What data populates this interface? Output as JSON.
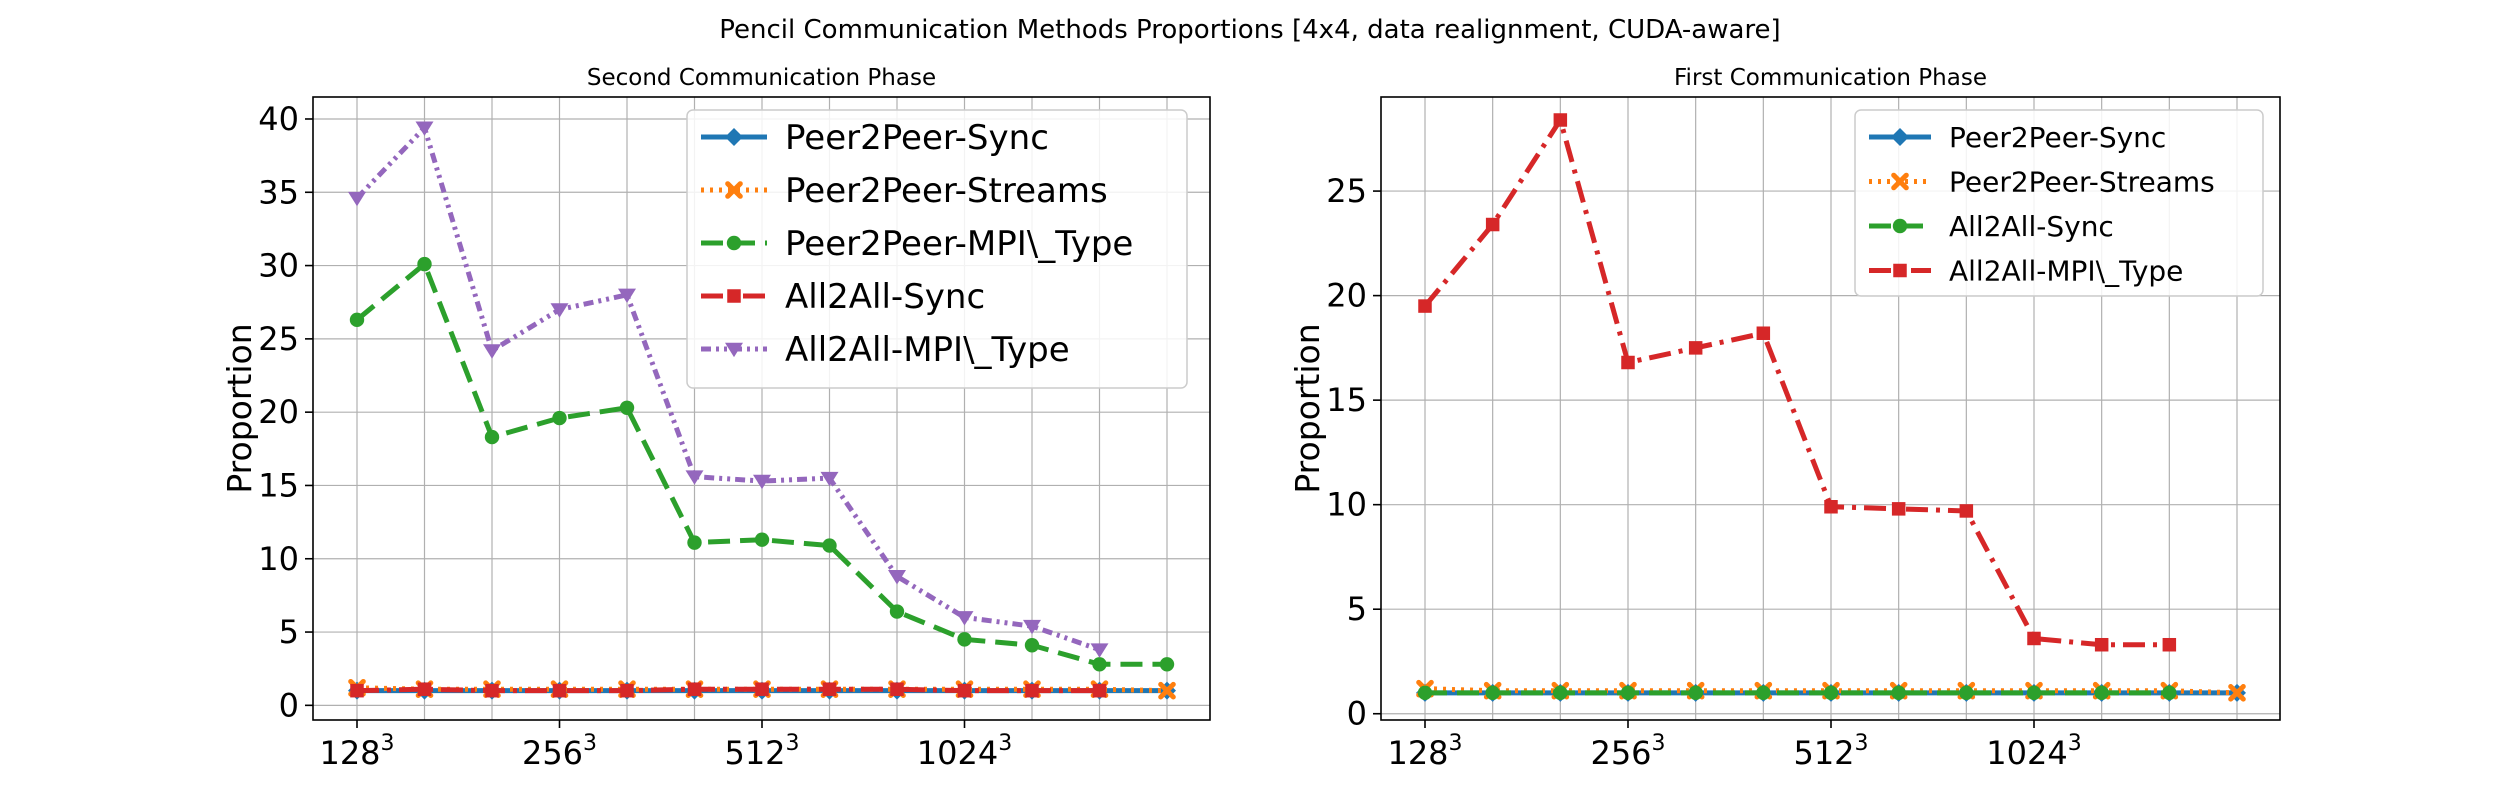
{
  "suptitle": "Pencil Communication Methods Proportions [4x4, data realignment, CUDA-aware]",
  "chart_data": [
    {
      "type": "line",
      "title": "Second Communication Phase",
      "ylabel": "Proportion",
      "x_count": 13,
      "xticks": [
        {
          "index": 0,
          "base": "128",
          "exp": "3"
        },
        {
          "index": 3,
          "base": "256",
          "exp": "3"
        },
        {
          "index": 6,
          "base": "512",
          "exp": "3"
        },
        {
          "index": 9,
          "base": "1024",
          "exp": "3"
        }
      ],
      "ylim": [
        -1,
        41.5
      ],
      "yticks": [
        0,
        5,
        10,
        15,
        20,
        25,
        30,
        35,
        40
      ],
      "grid": true,
      "legend_position": "top-right",
      "series": [
        {
          "name": "Peer2Peer-Sync",
          "color": "#1f77b4",
          "marker": "diamond",
          "dash": "",
          "values": [
            1,
            1,
            1,
            1,
            1,
            1,
            1,
            1,
            1,
            1,
            1,
            1,
            1
          ]
        },
        {
          "name": "Peer2Peer-Streams",
          "color": "#ff7f0e",
          "marker": "x",
          "dash": "3,6",
          "values": [
            1.2,
            1.1,
            1.1,
            1.1,
            1.1,
            1.1,
            1.1,
            1.1,
            1.1,
            1.1,
            1.1,
            1.1,
            1.0
          ]
        },
        {
          "name": "Peer2Peer-MPI\\_Type",
          "color": "#2ca02c",
          "marker": "circle",
          "dash": "22,10",
          "values": [
            26.3,
            30.1,
            18.3,
            19.6,
            20.3,
            11.1,
            11.3,
            10.9,
            6.4,
            4.5,
            4.1,
            2.8,
            2.8
          ]
        },
        {
          "name": "All2All-Sync",
          "color": "#d62728",
          "marker": "square",
          "dash": "22,8,4,8",
          "values": [
            1.0,
            1.1,
            1.0,
            1.0,
            1.0,
            1.1,
            1.1,
            1.1,
            1.1,
            1.0,
            1.0,
            1.0,
            null
          ]
        },
        {
          "name": "All2All-MPI\\_Type",
          "color": "#9467bd",
          "marker": "triangle-down",
          "dash": "10,5,3,5,3,5",
          "values": [
            34.6,
            39.4,
            24.2,
            27.0,
            28.0,
            15.6,
            15.3,
            15.5,
            8.8,
            6.0,
            5.4,
            3.8,
            null
          ]
        }
      ]
    },
    {
      "type": "line",
      "title": "First Communication Phase",
      "ylabel": "Proportion",
      "x_count": 13,
      "xticks": [
        {
          "index": 0,
          "base": "128",
          "exp": "3"
        },
        {
          "index": 3,
          "base": "256",
          "exp": "3"
        },
        {
          "index": 6,
          "base": "512",
          "exp": "3"
        },
        {
          "index": 9,
          "base": "1024",
          "exp": "3"
        }
      ],
      "ylim": [
        -0.3,
        29.5
      ],
      "yticks": [
        0,
        5,
        10,
        15,
        20,
        25
      ],
      "grid": true,
      "legend_position": "top-right",
      "series": [
        {
          "name": "Peer2Peer-Sync",
          "color": "#1f77b4",
          "marker": "diamond",
          "dash": "",
          "values": [
            1,
            1,
            1,
            1,
            1,
            1,
            1,
            1,
            1,
            1,
            1,
            1,
            1
          ]
        },
        {
          "name": "Peer2Peer-Streams",
          "color": "#ff7f0e",
          "marker": "x",
          "dash": "3,6",
          "values": [
            1.2,
            1.1,
            1.1,
            1.1,
            1.1,
            1.1,
            1.1,
            1.1,
            1.1,
            1.1,
            1.1,
            1.1,
            1.0
          ]
        },
        {
          "name": "All2All-Sync",
          "color": "#2ca02c",
          "marker": "circle",
          "dash": "22,10",
          "values": [
            1.0,
            1.0,
            1.0,
            1.0,
            1.0,
            1.0,
            1.0,
            1.0,
            1.0,
            1.0,
            1.0,
            1.0,
            null
          ]
        },
        {
          "name": "All2All-MPI\\_Type",
          "color": "#d62728",
          "marker": "square",
          "dash": "22,8,4,8",
          "values": [
            19.5,
            23.4,
            28.4,
            16.8,
            17.5,
            18.2,
            9.9,
            9.8,
            9.7,
            3.6,
            3.3,
            3.3,
            null
          ]
        }
      ]
    }
  ]
}
